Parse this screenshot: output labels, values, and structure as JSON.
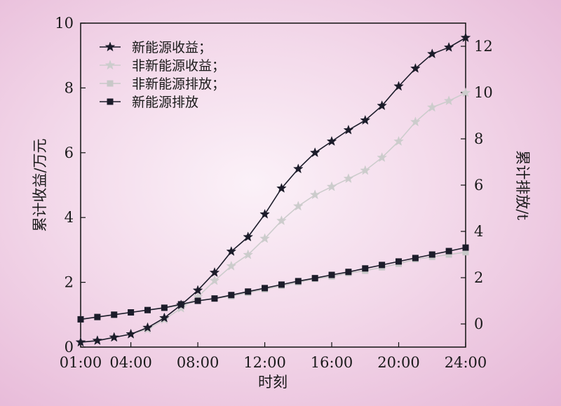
{
  "chart_data": {
    "type": "line",
    "xlabel": "时刻",
    "ylabel_left": "累计收益/万元",
    "ylabel_right": "累计排放/t",
    "x_tick_labels": [
      "01:00",
      "04:00",
      "08:00",
      "12:00",
      "16:00",
      "20:00",
      "24:00"
    ],
    "x_ticks": [
      1,
      4,
      8,
      12,
      16,
      20,
      24
    ],
    "xlim": [
      1,
      24
    ],
    "y_left_tick_labels": [
      "0",
      "2",
      "4",
      "6",
      "8",
      "10"
    ],
    "y_left_ticks": [
      0,
      2,
      4,
      6,
      8,
      10
    ],
    "ylim_left": [
      0,
      10
    ],
    "y_right_tick_labels": [
      "0",
      "2",
      "4",
      "6",
      "8",
      "10",
      "12"
    ],
    "y_right_ticks": [
      0,
      2,
      4,
      6,
      8,
      10,
      12
    ],
    "ylim_right": [
      -1,
      13
    ],
    "legend_position": "top-left",
    "x": [
      1,
      2,
      3,
      4,
      5,
      6,
      7,
      8,
      9,
      10,
      11,
      12,
      13,
      14,
      15,
      16,
      17,
      18,
      19,
      20,
      21,
      22,
      23,
      24
    ],
    "series": [
      {
        "name": "新能源收益；",
        "axis": "left",
        "marker": "star",
        "color": "#1c1c2a",
        "values": [
          0.15,
          0.2,
          0.3,
          0.4,
          0.6,
          0.9,
          1.3,
          1.75,
          2.3,
          2.95,
          3.4,
          4.1,
          4.9,
          5.5,
          6.0,
          6.35,
          6.7,
          7.0,
          7.45,
          8.05,
          8.6,
          9.05,
          9.25,
          9.55
        ]
      },
      {
        "name": "非新能源收益；",
        "axis": "left",
        "marker": "star",
        "color": "#cccccc",
        "values": [
          0.15,
          0.2,
          0.3,
          0.4,
          0.55,
          0.85,
          1.2,
          1.55,
          2.05,
          2.5,
          2.85,
          3.35,
          3.9,
          4.35,
          4.7,
          4.95,
          5.2,
          5.45,
          5.85,
          6.35,
          6.95,
          7.4,
          7.6,
          7.85
        ]
      },
      {
        "name": "非新能源排放；",
        "axis": "right",
        "marker": "square",
        "color": "#c8c8c8",
        "values": [
          0.2,
          0.3,
          0.4,
          0.5,
          0.6,
          0.7,
          0.8,
          1.0,
          1.1,
          1.2,
          1.35,
          1.5,
          1.65,
          1.8,
          1.95,
          2.05,
          2.2,
          2.3,
          2.45,
          2.6,
          2.8,
          2.9,
          3.0,
          3.1
        ]
      },
      {
        "name": "新能源排放",
        "axis": "right",
        "marker": "square",
        "color": "#1c1c2a",
        "values": [
          0.2,
          0.3,
          0.4,
          0.5,
          0.6,
          0.7,
          0.85,
          1.0,
          1.1,
          1.25,
          1.4,
          1.55,
          1.7,
          1.85,
          1.98,
          2.12,
          2.25,
          2.4,
          2.55,
          2.7,
          2.85,
          3.0,
          3.15,
          3.3
        ]
      }
    ]
  }
}
